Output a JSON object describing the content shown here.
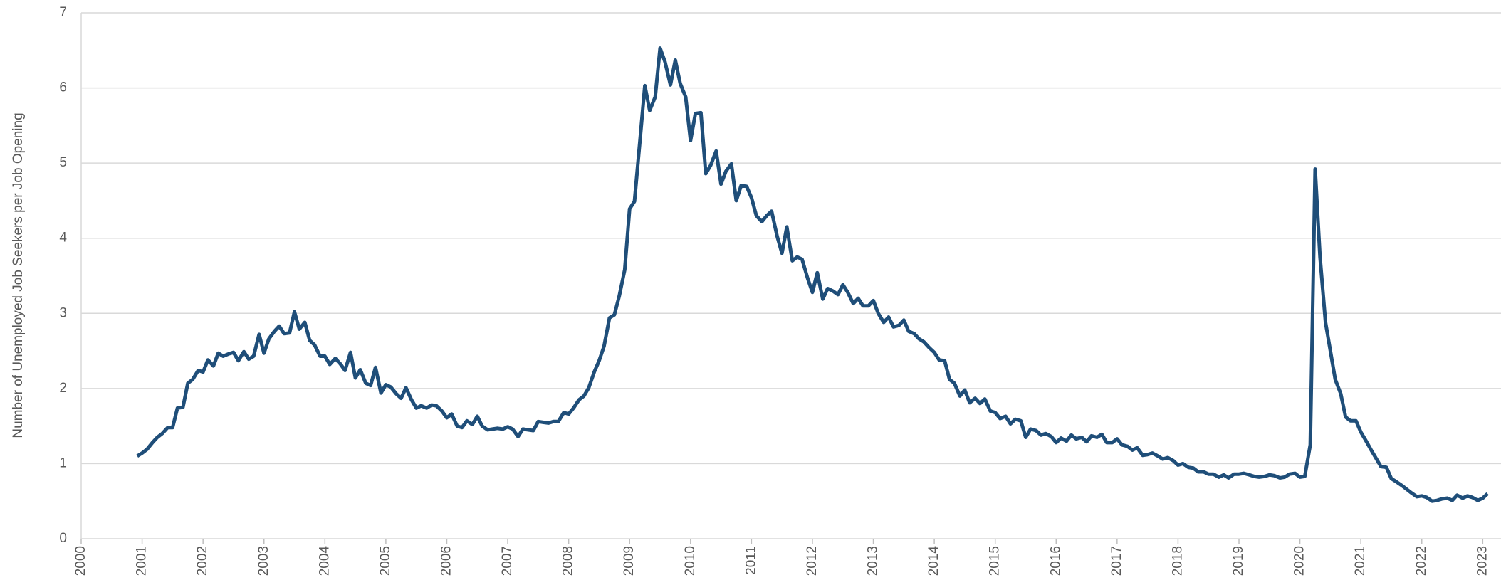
{
  "chart_data": {
    "type": "line",
    "y_label": "Number of Unemployed Job Seekers per Job Opening",
    "xlim": [
      2000,
      2023.3
    ],
    "ylim": [
      0,
      7
    ],
    "xticks": [
      2000,
      2001,
      2002,
      2003,
      2004,
      2005,
      2006,
      2007,
      2008,
      2009,
      2010,
      2011,
      2012,
      2013,
      2014,
      2015,
      2016,
      2017,
      2018,
      2019,
      2020,
      2021,
      2022,
      2023
    ],
    "yticks": [
      0,
      1,
      2,
      3,
      4,
      5,
      6,
      7
    ],
    "grid": true,
    "x": [
      2000.92,
      2001,
      2001.08,
      2001.17,
      2001.25,
      2001.33,
      2001.42,
      2001.5,
      2001.58,
      2001.67,
      2001.75,
      2001.83,
      2001.92,
      2002,
      2002.08,
      2002.17,
      2002.25,
      2002.33,
      2002.42,
      2002.5,
      2002.58,
      2002.67,
      2002.75,
      2002.83,
      2002.92,
      2003,
      2003.08,
      2003.17,
      2003.25,
      2003.33,
      2003.42,
      2003.5,
      2003.58,
      2003.67,
      2003.75,
      2003.83,
      2003.92,
      2004,
      2004.08,
      2004.17,
      2004.25,
      2004.33,
      2004.42,
      2004.5,
      2004.58,
      2004.67,
      2004.75,
      2004.83,
      2004.92,
      2005,
      2005.08,
      2005.17,
      2005.25,
      2005.33,
      2005.42,
      2005.5,
      2005.58,
      2005.67,
      2005.75,
      2005.83,
      2005.92,
      2006,
      2006.08,
      2006.17,
      2006.25,
      2006.33,
      2006.42,
      2006.5,
      2006.58,
      2006.67,
      2006.75,
      2006.83,
      2006.92,
      2007,
      2007.08,
      2007.17,
      2007.25,
      2007.33,
      2007.42,
      2007.5,
      2007.58,
      2007.67,
      2007.75,
      2007.83,
      2007.92,
      2008,
      2008.08,
      2008.17,
      2008.25,
      2008.33,
      2008.42,
      2008.5,
      2008.58,
      2008.67,
      2008.75,
      2008.83,
      2008.92,
      2009,
      2009.08,
      2009.17,
      2009.25,
      2009.33,
      2009.42,
      2009.5,
      2009.58,
      2009.67,
      2009.75,
      2009.83,
      2009.92,
      2010,
      2010.08,
      2010.17,
      2010.25,
      2010.33,
      2010.42,
      2010.5,
      2010.58,
      2010.67,
      2010.75,
      2010.83,
      2010.92,
      2011,
      2011.08,
      2011.17,
      2011.25,
      2011.33,
      2011.42,
      2011.5,
      2011.58,
      2011.67,
      2011.75,
      2011.83,
      2011.92,
      2012,
      2012.08,
      2012.17,
      2012.25,
      2012.33,
      2012.42,
      2012.5,
      2012.58,
      2012.67,
      2012.75,
      2012.83,
      2012.92,
      2013,
      2013.08,
      2013.17,
      2013.25,
      2013.33,
      2013.42,
      2013.5,
      2013.58,
      2013.67,
      2013.75,
      2013.83,
      2013.92,
      2014,
      2014.08,
      2014.17,
      2014.25,
      2014.33,
      2014.42,
      2014.5,
      2014.58,
      2014.67,
      2014.75,
      2014.83,
      2014.92,
      2015,
      2015.08,
      2015.17,
      2015.25,
      2015.33,
      2015.42,
      2015.5,
      2015.58,
      2015.67,
      2015.75,
      2015.83,
      2015.92,
      2016,
      2016.08,
      2016.17,
      2016.25,
      2016.33,
      2016.42,
      2016.5,
      2016.58,
      2016.67,
      2016.75,
      2016.83,
      2016.92,
      2017,
      2017.08,
      2017.17,
      2017.25,
      2017.33,
      2017.42,
      2017.5,
      2017.58,
      2017.67,
      2017.75,
      2017.83,
      2017.92,
      2018,
      2018.08,
      2018.17,
      2018.25,
      2018.33,
      2018.42,
      2018.5,
      2018.58,
      2018.67,
      2018.75,
      2018.83,
      2018.92,
      2019,
      2019.08,
      2019.17,
      2019.25,
      2019.33,
      2019.42,
      2019.5,
      2019.58,
      2019.67,
      2019.75,
      2019.83,
      2019.92,
      2020,
      2020.08,
      2020.17,
      2020.25,
      2020.33,
      2020.42,
      2020.5,
      2020.58,
      2020.67,
      2020.75,
      2020.83,
      2020.92,
      2021,
      2021.08,
      2021.17,
      2021.25,
      2021.33,
      2021.42,
      2021.5,
      2021.58,
      2021.67,
      2021.75,
      2021.83,
      2021.92,
      2022,
      2022.08,
      2022.17,
      2022.25,
      2022.33,
      2022.42,
      2022.5,
      2022.58,
      2022.67,
      2022.75,
      2022.83,
      2022.92,
      2023,
      2023.08
    ],
    "series": [
      {
        "color": "#1f4e79",
        "values": [
          1.1,
          1.14,
          1.19,
          1.28,
          1.35,
          1.4,
          1.48,
          1.48,
          1.74,
          1.75,
          2.07,
          2.12,
          2.24,
          2.22,
          2.38,
          2.3,
          2.47,
          2.43,
          2.46,
          2.48,
          2.37,
          2.49,
          2.39,
          2.43,
          2.72,
          2.47,
          2.66,
          2.76,
          2.83,
          2.73,
          2.74,
          3.02,
          2.79,
          2.88,
          2.64,
          2.58,
          2.43,
          2.43,
          2.32,
          2.4,
          2.33,
          2.24,
          2.48,
          2.14,
          2.25,
          2.07,
          2.04,
          2.28,
          1.94,
          2.05,
          2.02,
          1.93,
          1.87,
          2.01,
          1.85,
          1.74,
          1.77,
          1.74,
          1.78,
          1.77,
          1.7,
          1.61,
          1.66,
          1.5,
          1.48,
          1.57,
          1.52,
          1.63,
          1.5,
          1.45,
          1.46,
          1.47,
          1.46,
          1.49,
          1.46,
          1.36,
          1.46,
          1.45,
          1.44,
          1.56,
          1.55,
          1.54,
          1.56,
          1.56,
          1.68,
          1.66,
          1.74,
          1.85,
          1.9,
          2.01,
          2.22,
          2.37,
          2.56,
          2.94,
          2.98,
          3.23,
          3.58,
          4.39,
          4.49,
          5.3,
          6.03,
          5.7,
          5.88,
          6.53,
          6.35,
          6.04,
          6.37,
          6.06,
          5.88,
          5.3,
          5.66,
          5.67,
          4.86,
          4.97,
          5.16,
          4.72,
          4.89,
          4.99,
          4.5,
          4.7,
          4.69,
          4.54,
          4.3,
          4.22,
          4.3,
          4.36,
          4.03,
          3.8,
          4.15,
          3.7,
          3.75,
          3.72,
          3.47,
          3.28,
          3.54,
          3.19,
          3.33,
          3.3,
          3.25,
          3.38,
          3.28,
          3.13,
          3.2,
          3.1,
          3.1,
          3.17,
          3.0,
          2.88,
          2.95,
          2.82,
          2.84,
          2.91,
          2.76,
          2.73,
          2.66,
          2.62,
          2.54,
          2.48,
          2.38,
          2.37,
          2.12,
          2.07,
          1.9,
          1.98,
          1.81,
          1.87,
          1.8,
          1.86,
          1.7,
          1.68,
          1.6,
          1.63,
          1.53,
          1.59,
          1.57,
          1.35,
          1.46,
          1.44,
          1.38,
          1.4,
          1.36,
          1.28,
          1.34,
          1.3,
          1.38,
          1.33,
          1.35,
          1.29,
          1.37,
          1.35,
          1.39,
          1.28,
          1.28,
          1.33,
          1.25,
          1.23,
          1.18,
          1.21,
          1.11,
          1.12,
          1.14,
          1.1,
          1.06,
          1.08,
          1.04,
          0.98,
          1.0,
          0.95,
          0.94,
          0.89,
          0.89,
          0.86,
          0.86,
          0.82,
          0.85,
          0.81,
          0.86,
          0.86,
          0.87,
          0.85,
          0.83,
          0.82,
          0.83,
          0.85,
          0.84,
          0.81,
          0.82,
          0.86,
          0.87,
          0.82,
          0.83,
          1.25,
          4.92,
          3.75,
          2.88,
          2.5,
          2.12,
          1.93,
          1.62,
          1.57,
          1.57,
          1.42,
          1.31,
          1.18,
          1.07,
          0.96,
          0.95,
          0.8,
          0.76,
          0.71,
          0.66,
          0.61,
          0.56,
          0.57,
          0.55,
          0.5,
          0.51,
          0.53,
          0.54,
          0.51,
          0.58,
          0.54,
          0.57,
          0.55,
          0.51,
          0.54,
          0.6
        ]
      }
    ]
  }
}
